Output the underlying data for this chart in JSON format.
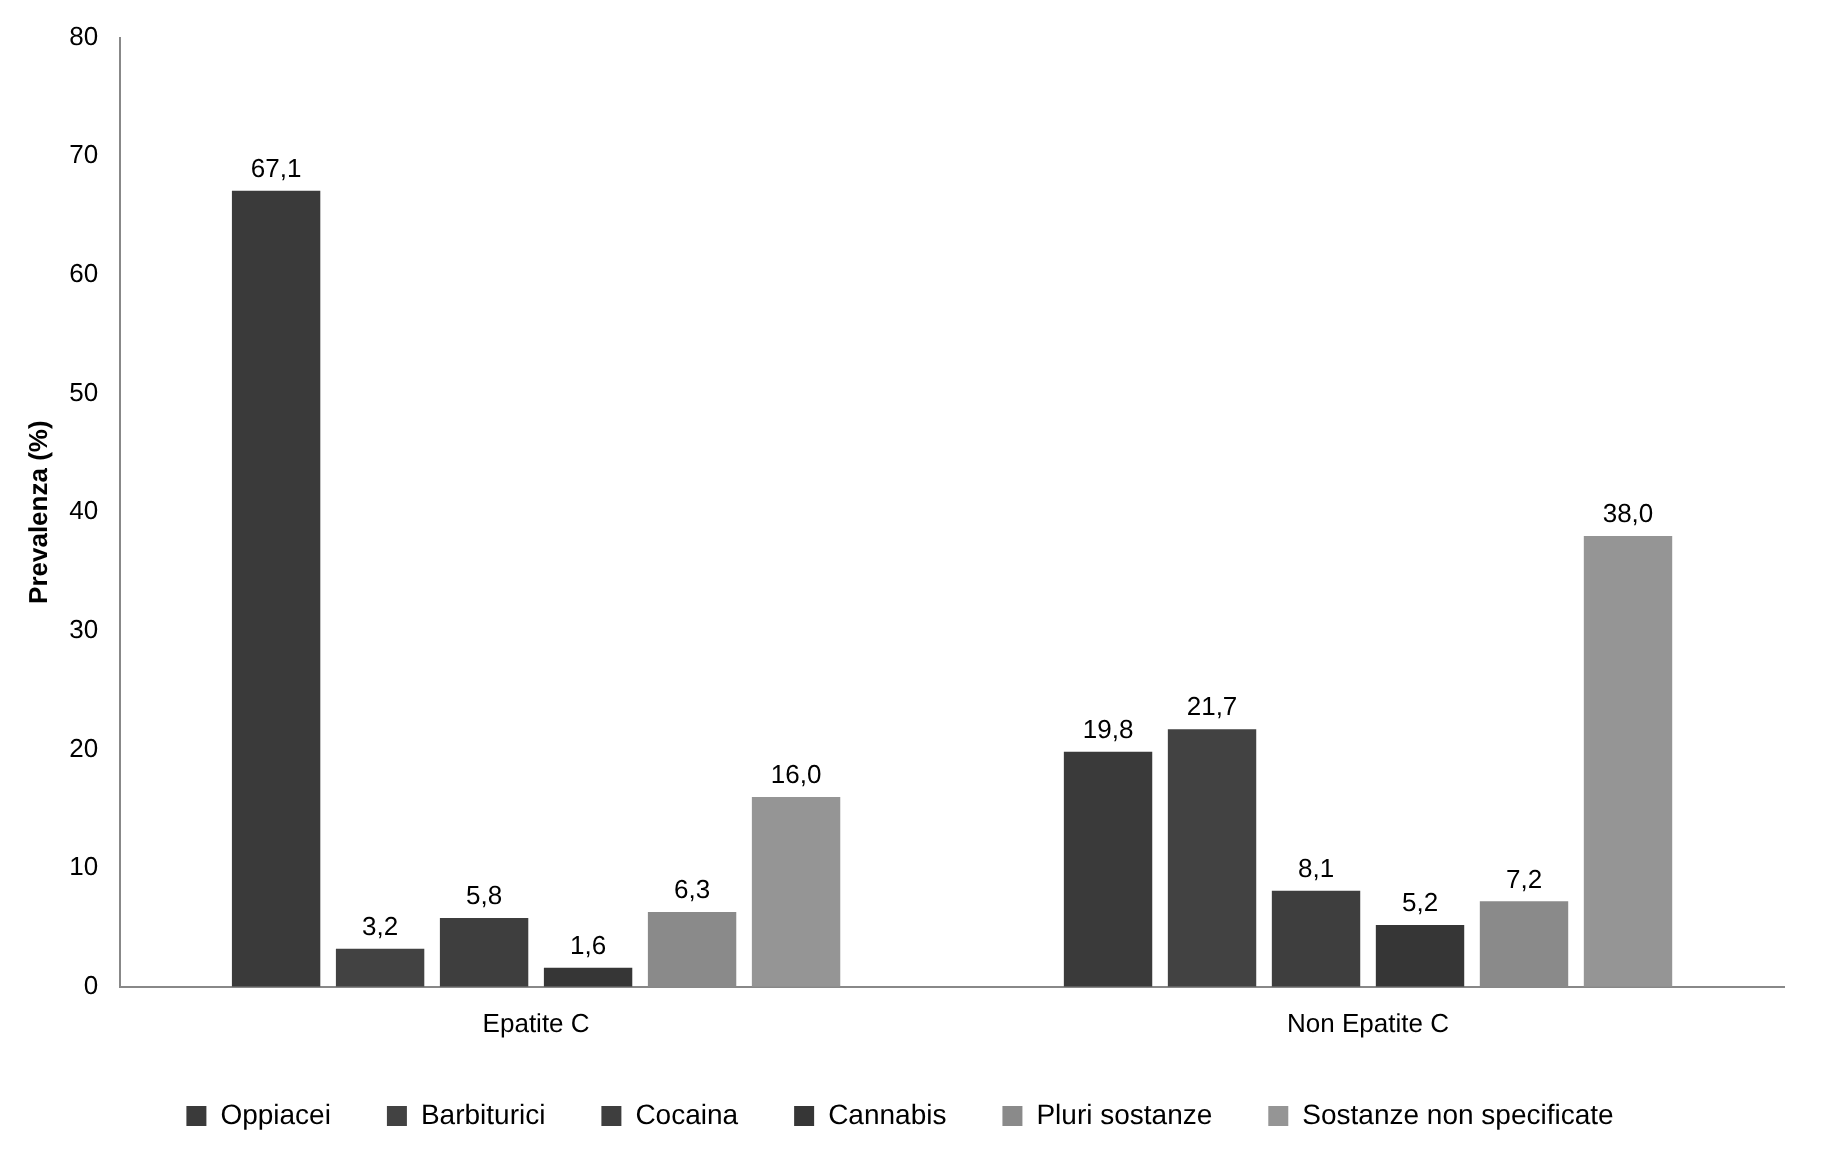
{
  "chart_data": {
    "type": "bar",
    "ylabel": "Prevalenza (%)",
    "categories": [
      "Epatite C",
      "Non Epatite C"
    ],
    "series": [
      {
        "name": "Oppiacei",
        "color": "#3a3a3a",
        "values": [
          67.1,
          19.8
        ],
        "value_labels": [
          "67,1",
          "19,8"
        ]
      },
      {
        "name": "Barbiturici",
        "color": "#424242",
        "values": [
          3.2,
          21.7
        ],
        "value_labels": [
          "3,2",
          "21,7"
        ]
      },
      {
        "name": "Cocaina",
        "color": "#3e3e3e",
        "values": [
          5.8,
          8.1
        ],
        "value_labels": [
          "5,8",
          "8,1"
        ]
      },
      {
        "name": "Cannabis",
        "color": "#363636",
        "values": [
          1.6,
          5.2
        ],
        "value_labels": [
          "1,6",
          "5,2"
        ]
      },
      {
        "name": "Pluri sostanze",
        "color": "#8a8a8a",
        "values": [
          6.3,
          7.2
        ],
        "value_labels": [
          "6,3",
          "7,2"
        ]
      },
      {
        "name": "Sostanze non specificate",
        "color": "#959595",
        "values": [
          16.0,
          38.0
        ],
        "value_labels": [
          "16,0",
          "38,0"
        ]
      }
    ],
    "ylim": [
      0,
      80
    ],
    "yticks": [
      0,
      10,
      20,
      30,
      40,
      50,
      60,
      70,
      80
    ],
    "grid": false,
    "legend": "bottom"
  }
}
